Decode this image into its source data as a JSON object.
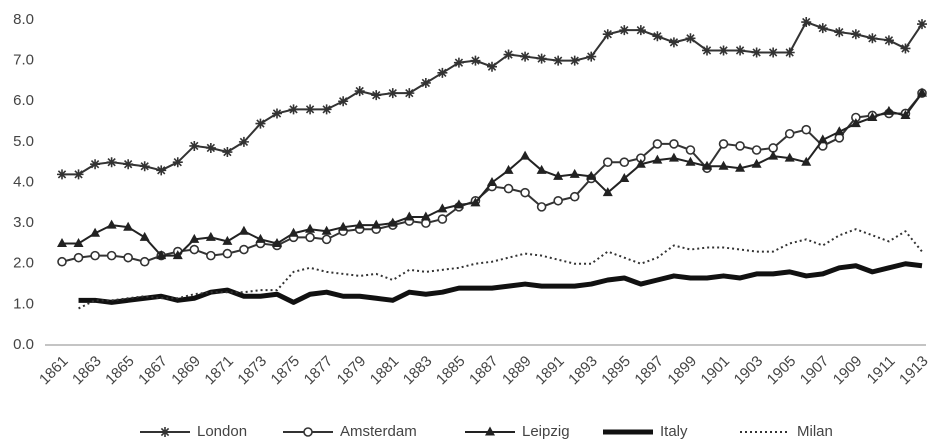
{
  "chart_data": {
    "type": "line",
    "categories": [
      "1861",
      null,
      "1863",
      null,
      "1865",
      null,
      "1867",
      null,
      "1869",
      null,
      "1871",
      null,
      "1873",
      null,
      "1875",
      null,
      "1877",
      null,
      "1879",
      null,
      "1881",
      null,
      "1883",
      null,
      "1885",
      null,
      "1887",
      null,
      "1889",
      null,
      "1891",
      null,
      "1893",
      null,
      "1895",
      null,
      "1897",
      null,
      "1899",
      null,
      "1901",
      null,
      "1903",
      null,
      "1905",
      null,
      "1907",
      null,
      "1909",
      null,
      "1911",
      null,
      "1913"
    ],
    "ylim": [
      0,
      8
    ],
    "yticks": [
      {
        "value": 0,
        "label": "0.0"
      },
      {
        "value": 1,
        "label": "1.0"
      },
      {
        "value": 2,
        "label": "2.0"
      },
      {
        "value": 3,
        "label": "3.0"
      },
      {
        "value": 4,
        "label": "4.0"
      },
      {
        "value": 5,
        "label": "5.0"
      },
      {
        "value": 6,
        "label": "6.0"
      },
      {
        "value": 7,
        "label": "7.0"
      },
      {
        "value": 8,
        "label": "8.0"
      }
    ],
    "grid": false,
    "legend": "bottom",
    "series": [
      {
        "name": "London",
        "color": "#333333",
        "marker": "star",
        "line": "solid",
        "width": 2,
        "values": [
          4.2,
          4.2,
          4.45,
          4.5,
          4.45,
          4.4,
          4.3,
          4.5,
          4.9,
          4.85,
          4.75,
          5.0,
          5.45,
          5.7,
          5.8,
          5.8,
          5.8,
          6.0,
          6.25,
          6.15,
          6.2,
          6.2,
          6.45,
          6.7,
          6.95,
          7.0,
          6.85,
          7.15,
          7.1,
          7.05,
          7.0,
          7.0,
          7.1,
          7.65,
          7.75,
          7.75,
          7.6,
          7.45,
          7.55,
          7.25,
          7.25,
          7.25,
          7.2,
          7.2,
          7.2,
          7.95,
          7.8,
          7.7,
          7.65,
          7.55,
          7.5,
          7.3,
          7.9
        ]
      },
      {
        "name": "Amsterdam",
        "color": "#333333",
        "marker": "circle",
        "line": "solid",
        "width": 2,
        "values": [
          2.05,
          2.15,
          2.2,
          2.2,
          2.15,
          2.05,
          2.2,
          2.3,
          2.35,
          2.2,
          2.25,
          2.35,
          2.5,
          2.45,
          2.65,
          2.65,
          2.6,
          2.8,
          2.85,
          2.85,
          2.95,
          3.05,
          3.0,
          3.1,
          3.4,
          3.55,
          3.9,
          3.85,
          3.75,
          3.4,
          3.55,
          3.65,
          4.1,
          4.5,
          4.5,
          4.6,
          4.95,
          4.95,
          4.8,
          4.35,
          4.95,
          4.9,
          4.8,
          4.85,
          5.2,
          5.3,
          4.9,
          5.1,
          5.6,
          5.65,
          5.7,
          5.7,
          6.2
        ]
      },
      {
        "name": "Leipzig",
        "color": "#222222",
        "marker": "triangle",
        "line": "solid",
        "width": 2,
        "values": [
          2.5,
          2.5,
          2.75,
          2.95,
          2.9,
          2.65,
          2.2,
          2.2,
          2.6,
          2.65,
          2.55,
          2.8,
          2.6,
          2.5,
          2.75,
          2.85,
          2.8,
          2.9,
          2.95,
          2.95,
          3.0,
          3.15,
          3.15,
          3.35,
          3.45,
          3.5,
          4.0,
          4.3,
          4.65,
          4.3,
          4.15,
          4.2,
          4.15,
          3.75,
          4.1,
          4.45,
          4.55,
          4.6,
          4.5,
          4.4,
          4.4,
          4.35,
          4.45,
          4.65,
          4.6,
          4.5,
          5.05,
          5.25,
          5.45,
          5.6,
          5.75,
          5.65,
          6.2
        ]
      },
      {
        "name": "Italy",
        "color": "#111111",
        "marker": "none",
        "line": "solid",
        "width": 5,
        "values": [
          null,
          1.1,
          1.1,
          1.05,
          1.1,
          1.15,
          1.2,
          1.1,
          1.15,
          1.3,
          1.35,
          1.2,
          1.2,
          1.25,
          1.05,
          1.25,
          1.3,
          1.2,
          1.2,
          1.15,
          1.1,
          1.3,
          1.25,
          1.3,
          1.4,
          1.4,
          1.4,
          1.45,
          1.5,
          1.45,
          1.45,
          1.45,
          1.5,
          1.6,
          1.65,
          1.5,
          1.6,
          1.7,
          1.65,
          1.65,
          1.7,
          1.65,
          1.75,
          1.75,
          1.8,
          1.7,
          1.75,
          1.9,
          1.95,
          1.8,
          1.9,
          2.0,
          1.95
        ]
      },
      {
        "name": "Milan",
        "color": "#333333",
        "marker": "none",
        "line": "dotted",
        "width": 2,
        "values": [
          null,
          0.9,
          1.1,
          1.1,
          1.15,
          1.2,
          1.15,
          1.15,
          1.25,
          1.3,
          1.3,
          1.3,
          1.35,
          1.35,
          1.8,
          1.9,
          1.8,
          1.75,
          1.7,
          1.75,
          1.6,
          1.85,
          1.8,
          1.85,
          1.9,
          2.0,
          2.05,
          2.15,
          2.25,
          2.2,
          2.1,
          2.0,
          2.0,
          2.3,
          2.15,
          2.0,
          2.15,
          2.45,
          2.35,
          2.4,
          2.4,
          2.35,
          2.3,
          2.3,
          2.5,
          2.6,
          2.45,
          2.7,
          2.85,
          2.7,
          2.55,
          2.8,
          2.3
        ]
      }
    ]
  }
}
